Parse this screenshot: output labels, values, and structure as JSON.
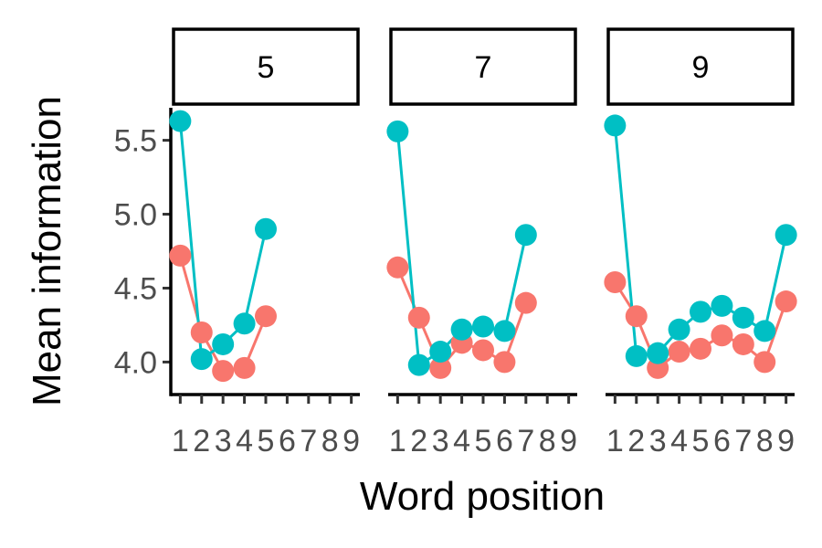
{
  "chart_data": {
    "type": "line",
    "xlabel": "Word position",
    "ylabel": "Mean information",
    "ylim": [
      3.78,
      5.72
    ],
    "yticks": [
      4.0,
      4.5,
      5.0,
      5.5
    ],
    "ytick_labels": [
      "4.0",
      "4.5",
      "5.0",
      "5.5"
    ],
    "xlim": [
      0.6,
      9.4
    ],
    "xticks": [
      1,
      2,
      3,
      4,
      5,
      6,
      7,
      8,
      9
    ],
    "xtick_labels": [
      "1",
      "2",
      "3",
      "4",
      "5",
      "6",
      "7",
      "8",
      "9"
    ],
    "grid": false,
    "legend": "none",
    "series_colors": [
      "#F8766D",
      "#00BFC4"
    ],
    "panels": [
      {
        "strip": "5",
        "series": [
          {
            "x": [
              1,
              2,
              3,
              4,
              5
            ],
            "y": [
              4.72,
              4.2,
              3.94,
              3.96,
              4.31
            ]
          },
          {
            "x": [
              1,
              2,
              3,
              4,
              5
            ],
            "y": [
              5.63,
              4.02,
              4.12,
              4.26,
              4.9
            ]
          }
        ]
      },
      {
        "strip": "7",
        "series": [
          {
            "x": [
              1,
              2,
              3,
              4,
              5,
              6,
              7
            ],
            "y": [
              4.64,
              4.3,
              3.96,
              4.13,
              4.08,
              4.0,
              4.4
            ]
          },
          {
            "x": [
              1,
              2,
              3,
              4,
              5,
              6,
              7
            ],
            "y": [
              5.56,
              3.98,
              4.07,
              4.22,
              4.24,
              4.21,
              4.86
            ]
          }
        ]
      },
      {
        "strip": "9",
        "series": [
          {
            "x": [
              1,
              2,
              3,
              4,
              5,
              6,
              7,
              8,
              9
            ],
            "y": [
              4.54,
              4.31,
              3.96,
              4.07,
              4.09,
              4.18,
              4.12,
              4.0,
              4.41
            ]
          },
          {
            "x": [
              1,
              2,
              3,
              4,
              5,
              6,
              7,
              8,
              9
            ],
            "y": [
              5.6,
              4.04,
              4.06,
              4.22,
              4.34,
              4.38,
              4.3,
              4.21,
              4.86
            ]
          }
        ]
      }
    ]
  }
}
